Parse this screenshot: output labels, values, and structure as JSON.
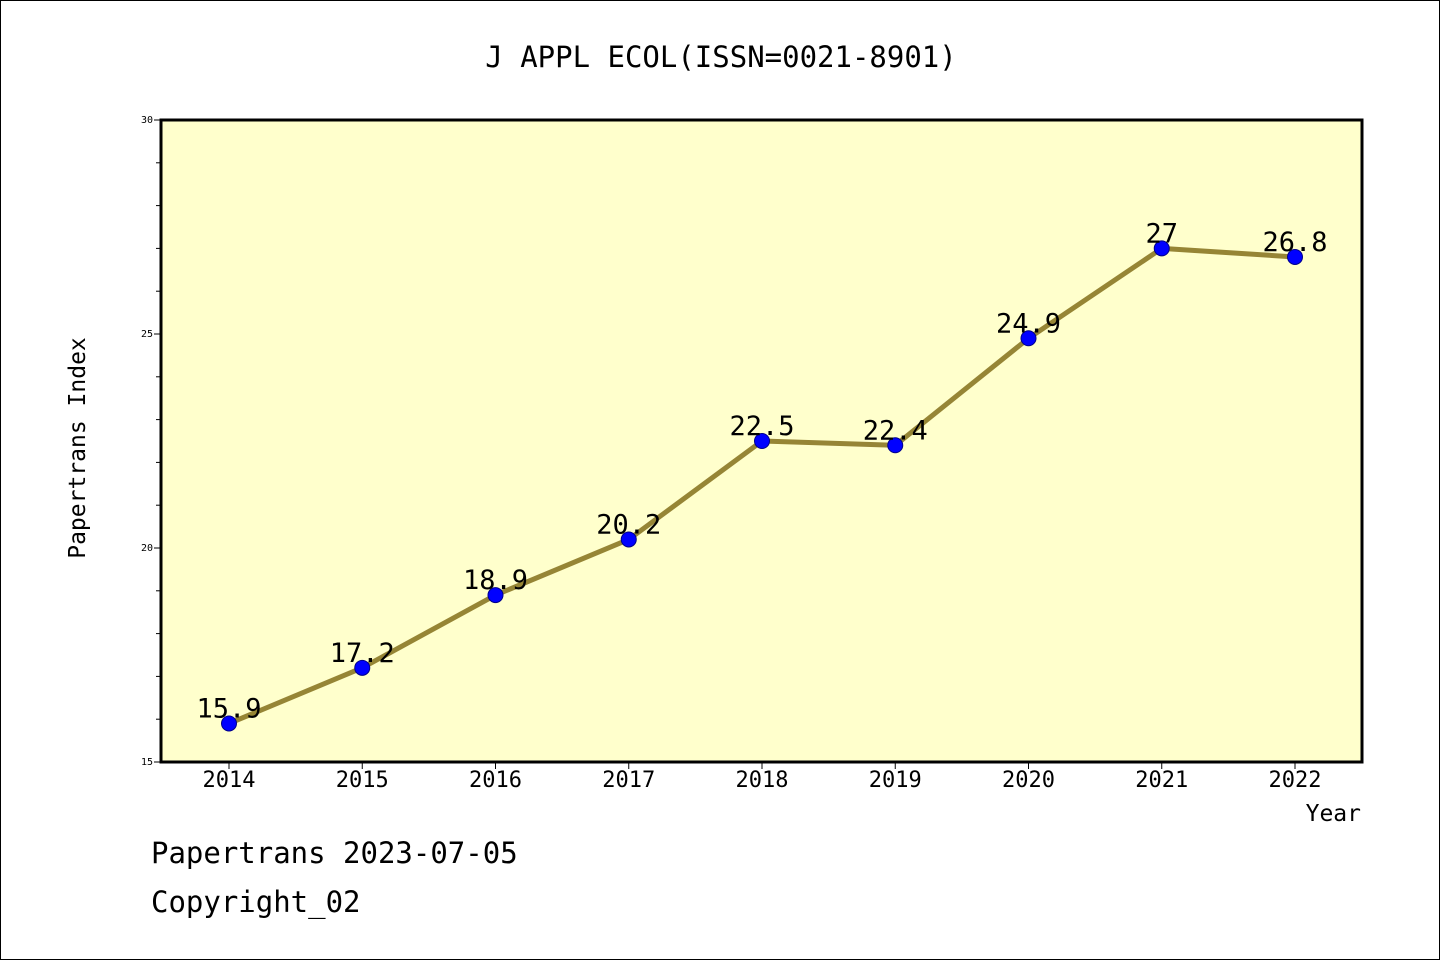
{
  "chart_data": {
    "type": "line",
    "title": "J APPL ECOL(ISSN=0021-8901)",
    "xlabel": "Year",
    "ylabel": "Papertrans Index",
    "categories": [
      "2014",
      "2015",
      "2016",
      "2017",
      "2018",
      "2019",
      "2020",
      "2021",
      "2022"
    ],
    "series": [
      {
        "values": [
          15.9,
          17.2,
          18.9,
          20.2,
          22.5,
          22.4,
          24.9,
          27,
          26.8
        ],
        "labels": [
          "15.9",
          "17.2",
          "18.9",
          "20.2",
          "22.5",
          "22.4",
          "24.9",
          "27",
          "26.8"
        ]
      }
    ],
    "ylim": [
      15,
      30
    ],
    "yticks": [
      "15",
      "20",
      "25",
      "30"
    ],
    "colors": {
      "plot_background": "#ffffcc",
      "line": "#968535",
      "marker": "#0000ff"
    },
    "grid": false,
    "legend": "none"
  },
  "footer": {
    "date_line": "Papertrans 2023-07-05",
    "copyright": "Copyright_02"
  }
}
